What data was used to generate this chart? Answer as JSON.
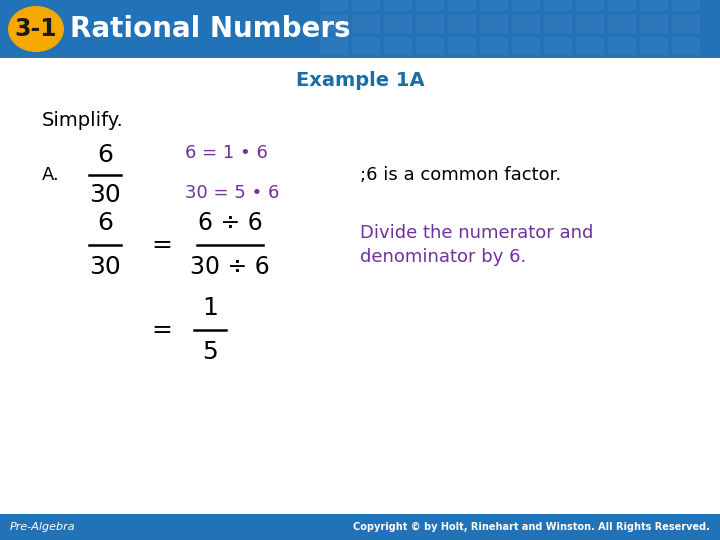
{
  "header_bg_color": "#2272b8",
  "header_text": "Rational Numbers",
  "header_badge_text": "3-1",
  "header_badge_bg": "#f5a800",
  "header_text_color": "#ffffff",
  "example_title": "Example 1A",
  "example_title_color": "#1a6ea8",
  "simplify_text": "Simplify.",
  "simplify_color": "#000000",
  "A_label": "A.",
  "frac1_num": "6",
  "frac1_den": "30",
  "frac_color": "#000000",
  "factor_line1": "6 = 1 • 6",
  "factor_line2": "30 = 5 • 6",
  "factor_color": "#7030a0",
  "common_factor_text": ";6 is a common factor.",
  "common_factor_color": "#000000",
  "eq2_frac_num": "6",
  "eq2_frac_den": "30",
  "eq2_div_num": "6 ÷ 6",
  "eq2_div_den": "30 ÷ 6",
  "div_color": "#000000",
  "explain_line1": "Divide the numerator and",
  "explain_line2": "denominator by 6.",
  "explain_color": "#7030a0",
  "eq3_num": "1",
  "eq3_den": "5",
  "footer_bg": "#2272b8",
  "footer_left": "Pre-Algebra",
  "footer_right": "Copyright © by Holt, Rinehart and Winston. All Rights Reserved.",
  "footer_text_color": "#ffffff",
  "bg_color": "#ffffff",
  "tile_color": "#3a80c0"
}
